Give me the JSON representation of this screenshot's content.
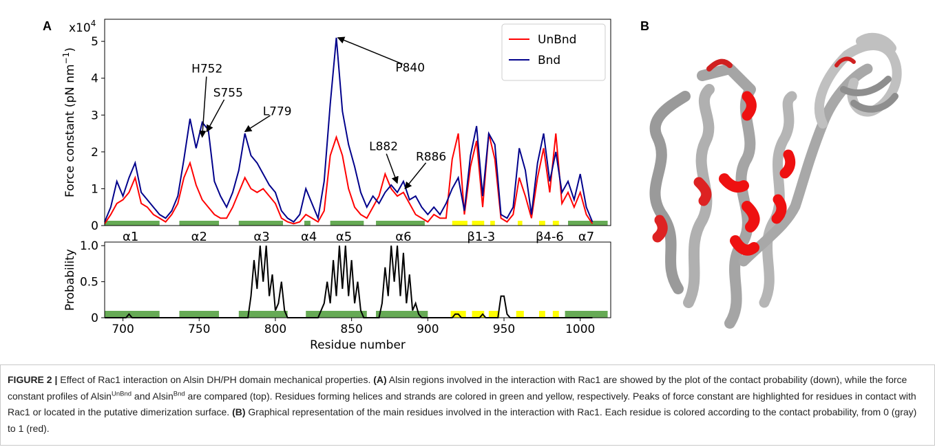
{
  "panel_labels": [
    "A",
    "B"
  ],
  "chart_data": [
    {
      "type": "line",
      "ylabel": {
        "text": "Force constant (pN nm",
        "sup": "−1",
        "end": ")"
      },
      "y_offset_text": {
        "base": "x10",
        "exponent": "4"
      },
      "xlim": [
        688,
        1020
      ],
      "ylim": [
        0,
        5.6
      ],
      "yticks": [
        0,
        1,
        2,
        3,
        4,
        5
      ],
      "legend": "upper right",
      "x": [
        688,
        692,
        696,
        700,
        704,
        708,
        712,
        716,
        720,
        724,
        728,
        732,
        736,
        740,
        744,
        748,
        752,
        756,
        760,
        764,
        768,
        772,
        776,
        780,
        784,
        788,
        792,
        796,
        800,
        804,
        808,
        812,
        816,
        820,
        824,
        828,
        832,
        836,
        840,
        844,
        848,
        852,
        856,
        860,
        864,
        868,
        872,
        876,
        880,
        884,
        888,
        892,
        896,
        900,
        904,
        908,
        912,
        916,
        920,
        924,
        928,
        932,
        936,
        940,
        944,
        948,
        952,
        956,
        960,
        964,
        968,
        972,
        976,
        980,
        984,
        988,
        992,
        996,
        1000,
        1004,
        1008
      ],
      "series": [
        {
          "name": "UnBnd",
          "color": "#ff0000",
          "values": [
            0.05,
            0.3,
            0.6,
            0.7,
            0.9,
            1.3,
            0.6,
            0.5,
            0.3,
            0.2,
            0.1,
            0.3,
            0.6,
            1.3,
            1.7,
            1.1,
            0.7,
            0.5,
            0.3,
            0.2,
            0.2,
            0.5,
            0.9,
            1.3,
            1.0,
            0.9,
            1.0,
            0.8,
            0.6,
            0.2,
            0.1,
            0.05,
            0.1,
            0.3,
            0.2,
            0.1,
            0.4,
            1.9,
            2.4,
            1.9,
            1.0,
            0.5,
            0.3,
            0.2,
            0.5,
            0.8,
            1.4,
            1.0,
            0.8,
            0.9,
            0.6,
            0.3,
            0.2,
            0.1,
            0.3,
            0.2,
            0.2,
            1.8,
            2.5,
            0.3,
            1.6,
            2.3,
            0.5,
            2.5,
            1.8,
            0.2,
            0.1,
            0.3,
            1.3,
            0.8,
            0.2,
            1.3,
            2.1,
            0.9,
            2.5,
            0.6,
            0.9,
            0.5,
            0.9,
            0.3,
            0.05
          ]
        },
        {
          "name": "Bnd",
          "color": "#00008b",
          "values": [
            0.1,
            0.5,
            1.2,
            0.8,
            1.3,
            1.7,
            0.9,
            0.7,
            0.5,
            0.3,
            0.2,
            0.4,
            0.8,
            1.8,
            2.9,
            2.1,
            2.8,
            2.6,
            1.2,
            0.8,
            0.5,
            0.9,
            1.5,
            2.5,
            1.9,
            1.7,
            1.4,
            1.1,
            0.9,
            0.4,
            0.2,
            0.1,
            0.3,
            1.0,
            0.6,
            0.2,
            1.2,
            3.3,
            5.1,
            3.1,
            2.2,
            1.6,
            0.9,
            0.5,
            0.8,
            0.6,
            0.9,
            1.1,
            0.9,
            1.2,
            0.7,
            0.8,
            0.5,
            0.3,
            0.5,
            0.3,
            0.6,
            1.0,
            1.3,
            0.4,
            1.9,
            2.7,
            0.8,
            2.5,
            2.2,
            0.3,
            0.2,
            0.5,
            2.1,
            1.5,
            0.3,
            1.7,
            2.5,
            1.2,
            2.0,
            0.9,
            1.2,
            0.7,
            1.4,
            0.5,
            0.1
          ]
        }
      ],
      "annotations": [
        {
          "text": "H752",
          "x": 752,
          "y": 2.4
        },
        {
          "text": "S755",
          "x": 755,
          "y": 2.55
        },
        {
          "text": "L779",
          "x": 780,
          "y": 2.55
        },
        {
          "text": "P840",
          "x": 841,
          "y": 5.1
        },
        {
          "text": "L882",
          "x": 880,
          "y": 1.15
        },
        {
          "text": "R886",
          "x": 885,
          "y": 1.0
        }
      ],
      "segments": [
        {
          "start": 688,
          "end": 724,
          "color": "#66aa55"
        },
        {
          "start": 737,
          "end": 763,
          "color": "#66aa55"
        },
        {
          "start": 776,
          "end": 805,
          "color": "#66aa55"
        },
        {
          "start": 819,
          "end": 823,
          "color": "#66aa55"
        },
        {
          "start": 836,
          "end": 858,
          "color": "#66aa55"
        },
        {
          "start": 866,
          "end": 898,
          "color": "#66aa55"
        },
        {
          "start": 916,
          "end": 926,
          "color": "#ffff00"
        },
        {
          "start": 929,
          "end": 937,
          "color": "#ffff00"
        },
        {
          "start": 941,
          "end": 944,
          "color": "#ffff00"
        },
        {
          "start": 959,
          "end": 962,
          "color": "#ffff00"
        },
        {
          "start": 973,
          "end": 977,
          "color": "#ffff00"
        },
        {
          "start": 982,
          "end": 986,
          "color": "#ffff00"
        },
        {
          "start": 992,
          "end": 1018,
          "color": "#66aa55"
        }
      ],
      "region_labels": [
        {
          "text": "α1",
          "x": 705
        },
        {
          "text": "α2",
          "x": 750
        },
        {
          "text": "α3",
          "x": 791
        },
        {
          "text": "α4",
          "x": 822
        },
        {
          "text": "α5",
          "x": 845
        },
        {
          "text": "α6",
          "x": 884
        },
        {
          "text": "β1-3",
          "x": 935
        },
        {
          "text": "β4-6",
          "x": 980
        },
        {
          "text": "α7",
          "x": 1004
        }
      ]
    },
    {
      "type": "line",
      "ylabel": "Probability",
      "xlabel": "Residue number",
      "xlim": [
        688,
        1020
      ],
      "ylim": [
        0,
        1.05
      ],
      "yticks": [
        0,
        0.5,
        {
          "value": 1,
          "label": "1.0"
        }
      ],
      "xticks": [
        700,
        750,
        800,
        850,
        900,
        950,
        1000
      ],
      "color": "#000000",
      "x": [
        688,
        690,
        692,
        694,
        696,
        698,
        700,
        702,
        704,
        706,
        708,
        710,
        712,
        714,
        716,
        718,
        720,
        722,
        724,
        726,
        728,
        730,
        732,
        734,
        736,
        738,
        740,
        742,
        744,
        746,
        748,
        750,
        752,
        754,
        756,
        758,
        760,
        762,
        764,
        766,
        768,
        770,
        772,
        774,
        776,
        778,
        780,
        782,
        784,
        786,
        788,
        790,
        792,
        794,
        796,
        798,
        800,
        802,
        804,
        806,
        808,
        810,
        812,
        814,
        816,
        818,
        820,
        822,
        824,
        826,
        828,
        830,
        832,
        834,
        836,
        838,
        840,
        842,
        844,
        846,
        848,
        850,
        852,
        854,
        856,
        858,
        860,
        862,
        864,
        866,
        868,
        870,
        872,
        874,
        876,
        878,
        880,
        882,
        884,
        886,
        888,
        890,
        892,
        894,
        896,
        898,
        900,
        902,
        904,
        906,
        908,
        910,
        912,
        914,
        916,
        918,
        920,
        922,
        924,
        926,
        928,
        930,
        932,
        934,
        936,
        938,
        940,
        942,
        944,
        946,
        948,
        950,
        952,
        954,
        956,
        958,
        960,
        962,
        964,
        966,
        968,
        970,
        972,
        974,
        976,
        978,
        980,
        982,
        984,
        986,
        988,
        990,
        992,
        994,
        996,
        998,
        1000,
        1002,
        1004,
        1006,
        1008
      ],
      "values": [
        0,
        0,
        0,
        0,
        0,
        0,
        0,
        0,
        0.05,
        0,
        0,
        0,
        0,
        0,
        0,
        0,
        0,
        0,
        0,
        0,
        0,
        0,
        0,
        0,
        0,
        0,
        0,
        0,
        0,
        0,
        0,
        0,
        0,
        0,
        0,
        0,
        0,
        0,
        0,
        0,
        0,
        0,
        0,
        0,
        0,
        0,
        0,
        0,
        0.3,
        0.8,
        0.4,
        1.0,
        0.5,
        1.0,
        0.3,
        0.6,
        0.1,
        0.2,
        0.5,
        0.1,
        0,
        0,
        0,
        0,
        0,
        0,
        0,
        0,
        0,
        0,
        0,
        0.1,
        0.2,
        0.5,
        0.2,
        0.8,
        0.3,
        1.0,
        0.4,
        1.0,
        0.3,
        0.8,
        0.2,
        0.5,
        0.1,
        0,
        0,
        0,
        0,
        0,
        0,
        0.2,
        0.7,
        0.3,
        1.0,
        0.5,
        1.0,
        0.3,
        0.9,
        0.2,
        0.6,
        0.1,
        0.2,
        0.05,
        0,
        0,
        0,
        0,
        0,
        0,
        0,
        0,
        0,
        0,
        0,
        0.05,
        0.05,
        0,
        0,
        0,
        0,
        0,
        0,
        0,
        0.05,
        0,
        0,
        0,
        0,
        0,
        0.3,
        0.3,
        0.05,
        0,
        0,
        0,
        0,
        0,
        0,
        0,
        0,
        0,
        0,
        0,
        0,
        0,
        0,
        0,
        0,
        0,
        0,
        0,
        0,
        0,
        0,
        0,
        0,
        0,
        0,
        0,
        0
      ],
      "segments": [
        {
          "start": 688,
          "end": 724,
          "color": "#66aa55"
        },
        {
          "start": 737,
          "end": 763,
          "color": "#66aa55"
        },
        {
          "start": 776,
          "end": 808,
          "color": "#66aa55"
        },
        {
          "start": 820,
          "end": 860,
          "color": "#66aa55"
        },
        {
          "start": 866,
          "end": 900,
          "color": "#66aa55"
        },
        {
          "start": 915,
          "end": 925,
          "color": "#ffff00"
        },
        {
          "start": 929,
          "end": 937,
          "color": "#ffff00"
        },
        {
          "start": 940,
          "end": 947,
          "color": "#ffff00"
        },
        {
          "start": 958,
          "end": 963,
          "color": "#ffff00"
        },
        {
          "start": 973,
          "end": 977,
          "color": "#ffff00"
        },
        {
          "start": 982,
          "end": 986,
          "color": "#ffff00"
        },
        {
          "start": 990,
          "end": 1018,
          "color": "#66aa55"
        }
      ]
    }
  ],
  "caption": [
    {
      "text": "FIGURE 2 |",
      "bold": true
    },
    {
      "text": " Effect of Rac1 interaction on Alsin DH/PH domain mechanical properties. "
    },
    {
      "text": "(A)",
      "bold": true
    },
    {
      "text": " Alsin regions involved in the interaction with Rac1 are showed by the plot of the contact probability (down), while the force constant profiles of Alsin"
    },
    {
      "text": "UnBnd",
      "sup": true
    },
    {
      "text": " and Alsin"
    },
    {
      "text": "Bnd",
      "sup": true
    },
    {
      "text": " are compared (top). Residues forming helices and strands are colored in green and yellow, respectively. Peaks of force constant are highlighted for residues in contact with Rac1 or located in the putative dimerization surface. "
    },
    {
      "text": "(B)",
      "bold": true
    },
    {
      "text": " Graphical representation of the main residues involved in the interaction with Rac1. Each residue is colored according to the contact probability, from 0 (gray) to 1 (red)."
    }
  ]
}
